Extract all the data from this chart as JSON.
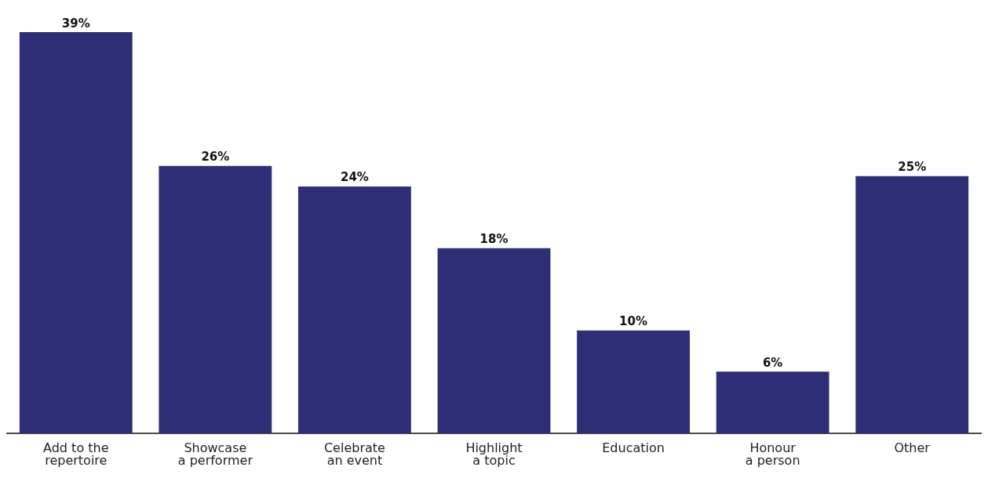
{
  "chart_data": {
    "type": "bar",
    "categories": [
      "Add to the\nrepertoire",
      "Showcase\na performer",
      "Celebrate\nan event",
      "Highlight\na topic",
      "Education",
      "Honour\na person",
      "Other"
    ],
    "values": [
      39,
      26,
      24,
      18,
      10,
      6,
      25
    ],
    "value_labels": [
      "39%",
      "26%",
      "24%",
      "18%",
      "10%",
      "6%",
      "25%"
    ],
    "color": "#2e2e76",
    "grid": false
  }
}
